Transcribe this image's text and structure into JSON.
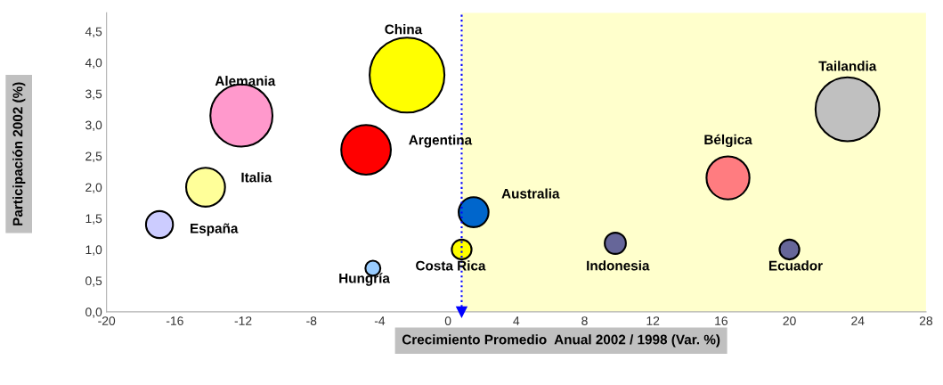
{
  "chart_data": {
    "type": "bubble",
    "xlabel": "Crecimiento Promedio  Anual 2002 / 1998 (Var. %)",
    "ylabel": "Participación 2002 (%)",
    "xlim": [
      -20,
      28
    ],
    "xticks": [
      -20,
      -16,
      -12,
      -8,
      -4,
      0,
      4,
      8,
      12,
      16,
      20,
      24,
      28
    ],
    "ylim": [
      0,
      4.8
    ],
    "yticks": [
      {
        "value": 0,
        "label": "0,0"
      },
      {
        "value": 0.5,
        "label": "0,5"
      },
      {
        "value": 1,
        "label": "1,0"
      },
      {
        "value": 1.5,
        "label": "1,5"
      },
      {
        "value": 2,
        "label": "2,0"
      },
      {
        "value": 2.5,
        "label": "2,5"
      },
      {
        "value": 3,
        "label": "3,0"
      },
      {
        "value": 3.5,
        "label": "3,5"
      },
      {
        "value": 4,
        "label": "4,0"
      },
      {
        "value": 4.5,
        "label": "4,5"
      }
    ],
    "grid": false,
    "legend": false,
    "bands": [
      {
        "axis": "x",
        "from": 0.8,
        "to": 28,
        "color": "#ffffcc"
      }
    ],
    "ref_lines": [
      {
        "axis": "x",
        "value": 0.8,
        "color": "#0000ff",
        "line_style": "dotted"
      }
    ],
    "series": [
      {
        "name": "China",
        "color": "#ffff00",
        "x": [
          -2.4
        ],
        "values": [
          3.8
        ],
        "sizes": [
          1
        ]
      },
      {
        "name": "Alemania",
        "color": "#ff99cc",
        "x": [
          -12.1
        ],
        "values": [
          3.15
        ],
        "sizes": [
          0.69
        ]
      },
      {
        "name": "Argentina",
        "color": "#ff0000",
        "x": [
          -4.8
        ],
        "values": [
          2.6
        ],
        "sizes": [
          0.44
        ]
      },
      {
        "name": "Italia",
        "color": "#ffff99",
        "x": [
          -14.2
        ],
        "values": [
          2.0
        ],
        "sizes": [
          0.27
        ]
      },
      {
        "name": "España",
        "color": "#ccccff",
        "x": [
          -16.9
        ],
        "values": [
          1.4
        ],
        "sizes": [
          0.13
        ]
      },
      {
        "name": "Hungría",
        "color": "#99ccff",
        "x": [
          -4.4
        ],
        "values": [
          0.7
        ],
        "sizes": [
          0.04
        ]
      },
      {
        "name": "Costa Rica",
        "color": "#ffff00",
        "x": [
          0.8
        ],
        "values": [
          1.0
        ],
        "sizes": [
          0.07
        ]
      },
      {
        "name": "Australia",
        "color": "#0066cc",
        "x": [
          1.5
        ],
        "values": [
          1.6
        ],
        "sizes": [
          0.16
        ]
      },
      {
        "name": "Indonesia",
        "color": "#666699",
        "x": [
          9.8
        ],
        "values": [
          1.1
        ],
        "sizes": [
          0.08
        ]
      },
      {
        "name": "Bélgica",
        "color": "#ff7c80",
        "x": [
          16.4
        ],
        "values": [
          2.15
        ],
        "sizes": [
          0.33
        ]
      },
      {
        "name": "Ecuador",
        "color": "#666699",
        "x": [
          20.0
        ],
        "values": [
          1.0
        ],
        "sizes": [
          0.07
        ]
      },
      {
        "name": "Tailandia",
        "color": "#c0c0c0",
        "x": [
          23.4
        ],
        "values": [
          3.25
        ],
        "sizes": [
          0.73
        ]
      }
    ]
  }
}
